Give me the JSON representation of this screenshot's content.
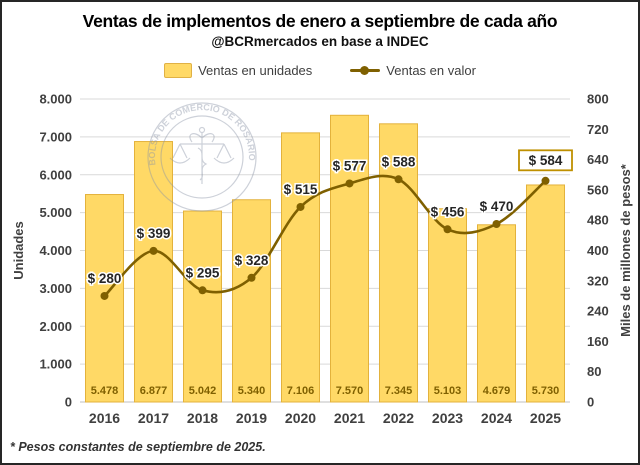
{
  "header": {
    "title": "Ventas de implementos de enero a septiembre de cada año",
    "subtitle": "@BCRmercados en base a INDEC"
  },
  "footer": {
    "note": "* Pesos constantes de septiembre de 2025."
  },
  "watermark": {
    "text": "BOLSA DE COMERCIO DE ROSARIO"
  },
  "colors": {
    "bar_fill": "#FFD966",
    "bar_border": "#E3B23C",
    "line": "#7F6000",
    "bar_label": "#7F6000",
    "point_label": "#262626",
    "grid": "#D9D9D9",
    "axis_line": "#BFBFBF",
    "tick_label": "#404040",
    "axis_title": "#404040",
    "watermark": "#8A93A6",
    "highlight_box_border": "#BF9000",
    "highlight_box_fill": "#FFFFFF"
  },
  "chart_data": {
    "type": "bar+line",
    "title": "Ventas de implementos de enero a septiembre de cada año",
    "subtitle": "@BCRmercados en base a INDEC",
    "categories": [
      "2016",
      "2017",
      "2018",
      "2019",
      "2020",
      "2021",
      "2022",
      "2023",
      "2024",
      "2025"
    ],
    "series": [
      {
        "name": "Ventas en unidades",
        "type": "bar",
        "axis": "left",
        "values": [
          5478,
          6877,
          5042,
          5340,
          7106,
          7570,
          7345,
          5103,
          4679,
          5730
        ],
        "labels": [
          "5.478",
          "6.877",
          "5.042",
          "5.340",
          "7.106",
          "7.570",
          "7.345",
          "5.103",
          "4.679",
          "5.730"
        ]
      },
      {
        "name": "Ventas en valor",
        "type": "line",
        "axis": "right",
        "values": [
          280,
          399,
          295,
          328,
          515,
          577,
          588,
          456,
          470,
          584
        ],
        "labels": [
          "$ 280",
          "$ 399",
          "$ 295",
          "$ 328",
          "$ 515",
          "$ 577",
          "$ 588",
          "$ 456",
          "$ 470",
          "$ 584"
        ],
        "highlight_last": true
      }
    ],
    "left_axis": {
      "title": "Unidades",
      "min": 0,
      "max": 8000,
      "step": 1000,
      "tick_labels": [
        "0",
        "1.000",
        "2.000",
        "3.000",
        "4.000",
        "5.000",
        "6.000",
        "7.000",
        "8.000"
      ]
    },
    "right_axis": {
      "title": "Miles de millones de pesos*",
      "min": 0,
      "max": 800,
      "step": 80,
      "tick_labels": [
        "0",
        "80",
        "160",
        "240",
        "320",
        "400",
        "480",
        "560",
        "640",
        "720",
        "800"
      ]
    },
    "grid": true,
    "legend_position": "top"
  }
}
